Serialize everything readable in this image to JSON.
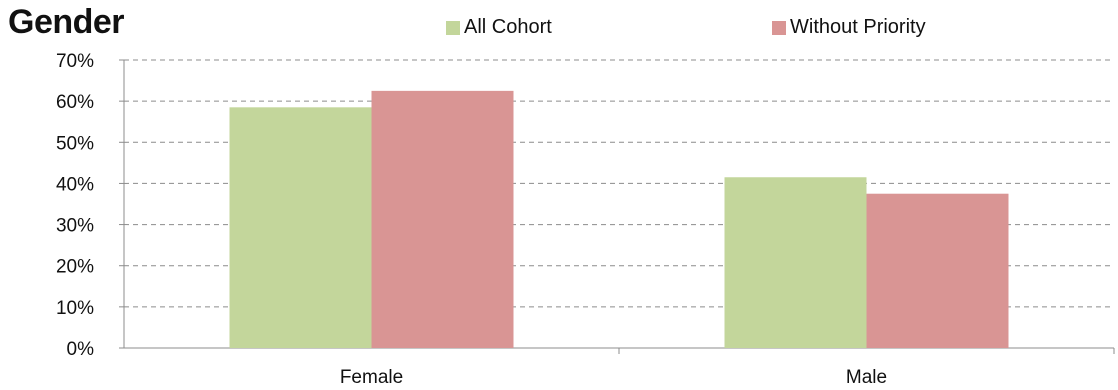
{
  "chart_data": {
    "type": "bar",
    "title": "Gender",
    "categories": [
      "Female",
      "Male"
    ],
    "series": [
      {
        "name": "All Cohort",
        "values": [
          58.5,
          41.5
        ],
        "color": "#c3d69b"
      },
      {
        "name": "Without Priority",
        "values": [
          62.5,
          37.5
        ],
        "color": "#d99594"
      }
    ],
    "ylim": [
      0,
      70
    ],
    "yticks": [
      0,
      10,
      20,
      30,
      40,
      50,
      60,
      70
    ],
    "ytick_labels": [
      "0%",
      "10%",
      "20%",
      "30%",
      "40%",
      "50%",
      "60%",
      "70%"
    ],
    "xlabel": "",
    "ylabel": "",
    "grid": "horizontal-dashed",
    "legend_position": "top"
  }
}
